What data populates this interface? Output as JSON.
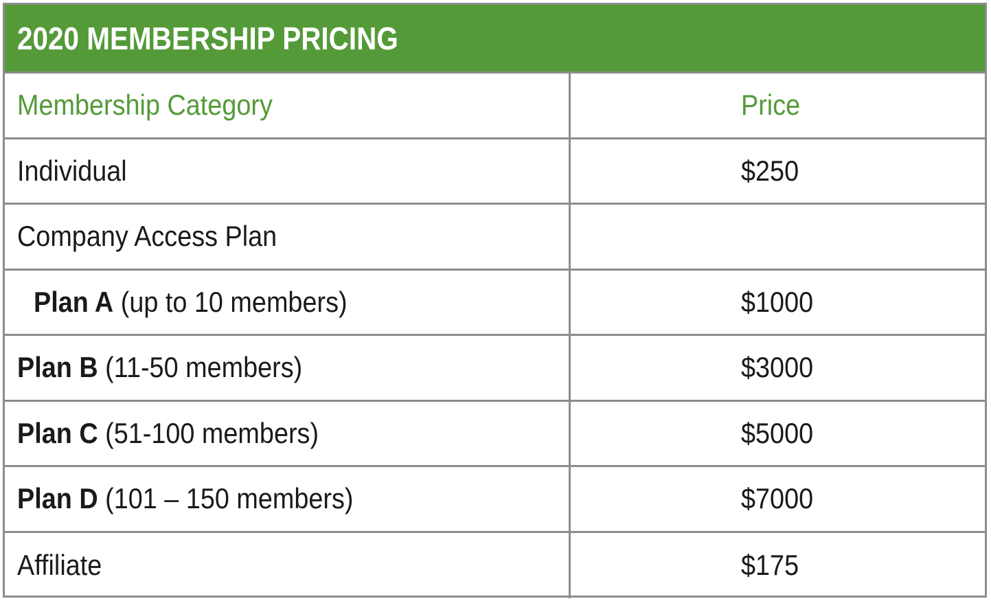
{
  "title": "2020 MEMBERSHIP PRICING",
  "colors": {
    "header_green": "#549a38",
    "border_gray": "#8c8c8c",
    "text": "#1a1a1a"
  },
  "table": {
    "headers": {
      "category": "Membership Category",
      "price": "Price"
    },
    "rows": [
      {
        "plan": "",
        "category": "Individual",
        "price": "$250"
      },
      {
        "plan": "",
        "category": "Company Access Plan",
        "price": ""
      },
      {
        "plan": "Plan A",
        "category": " (up to 10 members)",
        "price": "$1000"
      },
      {
        "plan": "Plan B",
        "category": " (11-50 members)",
        "price": "$3000"
      },
      {
        "plan": "Plan C",
        "category": " (51-100 members)",
        "price": "$5000"
      },
      {
        "plan": "Plan D",
        "category": " (101 – 150 members)",
        "price": "$7000"
      },
      {
        "plan": "",
        "category": "Affiliate",
        "price": "$175"
      }
    ]
  }
}
